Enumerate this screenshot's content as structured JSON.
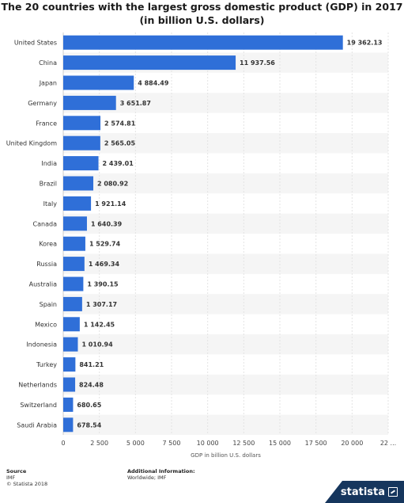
{
  "chart_data": {
    "type": "bar",
    "orientation": "horizontal",
    "title": "The 20 countries with the largest gross domestic product (GDP) in 2017 (in billion U.S. dollars)",
    "xlabel": "GDP in billion U.S. dollars",
    "ylabel": "",
    "xlim": [
      0,
      22500
    ],
    "x_ticks": [
      "0",
      "2 500",
      "5 000",
      "7 500",
      "10 000",
      "12 500",
      "15 000",
      "17 500",
      "20 000",
      "22 ..."
    ],
    "grid": true,
    "categories": [
      "United States",
      "China",
      "Japan",
      "Germany",
      "France",
      "United Kingdom",
      "India",
      "Brazil",
      "Italy",
      "Canada",
      "Korea",
      "Russia",
      "Australia",
      "Spain",
      "Mexico",
      "Indonesia",
      "Turkey",
      "Netherlands",
      "Switzerland",
      "Saudi Arabia"
    ],
    "values": [
      19362.13,
      11937.56,
      4884.49,
      3651.87,
      2574.81,
      2565.05,
      2439.01,
      2080.92,
      1921.14,
      1640.39,
      1529.74,
      1469.34,
      1390.15,
      1307.17,
      1142.45,
      1010.94,
      841.21,
      824.48,
      680.65,
      678.54
    ],
    "value_labels": [
      "19 362.13",
      "11 937.56",
      "4 884.49",
      "3 651.87",
      "2 574.81",
      "2 565.05",
      "2 439.01",
      "2 080.92",
      "1 921.14",
      "1 640.39",
      "1 529.74",
      "1 469.34",
      "1 390.15",
      "1 307.17",
      "1 142.45",
      "1 010.94",
      "841.21",
      "824.48",
      "680.65",
      "678.54"
    ],
    "bar_color": "#2f6fd8"
  },
  "footer": {
    "source_heading": "Source",
    "source_lines": [
      "IMF",
      "© Statista 2018"
    ],
    "info_heading": "Additional Information:",
    "info_lines": [
      "Worldwide; IMF"
    ]
  },
  "brand": {
    "name": "statista",
    "color": "#16365d"
  }
}
